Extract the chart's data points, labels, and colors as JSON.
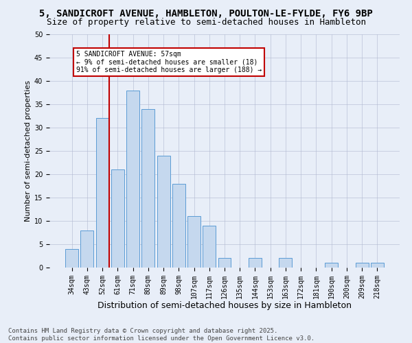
{
  "title_line1": "5, SANDICROFT AVENUE, HAMBLETON, POULTON-LE-FYLDE, FY6 9BP",
  "title_line2": "Size of property relative to semi-detached houses in Hambleton",
  "xlabel": "Distribution of semi-detached houses by size in Hambleton",
  "ylabel": "Number of semi-detached properties",
  "categories": [
    "34sqm",
    "43sqm",
    "52sqm",
    "61sqm",
    "71sqm",
    "80sqm",
    "89sqm",
    "98sqm",
    "107sqm",
    "117sqm",
    "126sqm",
    "135sqm",
    "144sqm",
    "153sqm",
    "163sqm",
    "172sqm",
    "181sqm",
    "190sqm",
    "200sqm",
    "209sqm",
    "218sqm"
  ],
  "values": [
    4,
    8,
    32,
    21,
    38,
    34,
    24,
    18,
    11,
    9,
    2,
    0,
    2,
    0,
    2,
    0,
    0,
    1,
    0,
    1,
    1
  ],
  "bar_color": "#c5d8ee",
  "bar_edge_color": "#5b9bd5",
  "vline_color": "#c00000",
  "annotation_title": "5 SANDICROFT AVENUE: 57sqm",
  "annotation_line1": "← 9% of semi-detached houses are smaller (18)",
  "annotation_line2": "91% of semi-detached houses are larger (188) →",
  "annotation_box_color": "#ffffff",
  "annotation_box_edge": "#c00000",
  "ylim": [
    0,
    50
  ],
  "yticks": [
    0,
    5,
    10,
    15,
    20,
    25,
    30,
    35,
    40,
    45,
    50
  ],
  "footer_line1": "Contains HM Land Registry data © Crown copyright and database right 2025.",
  "footer_line2": "Contains public sector information licensed under the Open Government Licence v3.0.",
  "bg_color": "#e8eef8",
  "grid_color": "#b0b8d0",
  "title_fontsize": 10,
  "subtitle_fontsize": 9,
  "tick_fontsize": 7,
  "xlabel_fontsize": 9,
  "ylabel_fontsize": 8,
  "footer_fontsize": 6.5
}
